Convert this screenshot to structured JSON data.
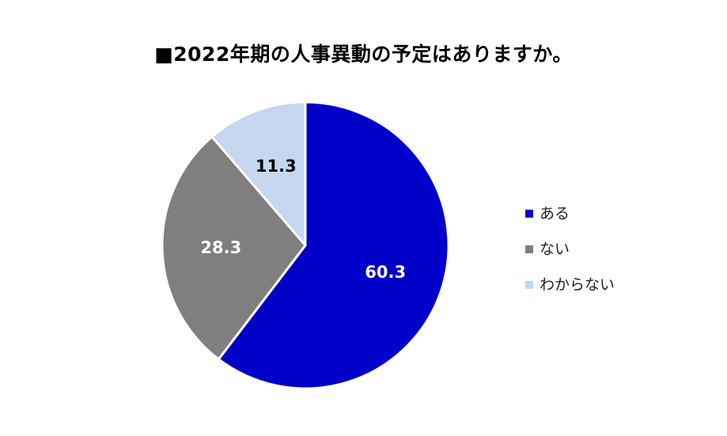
{
  "chart_data": {
    "type": "pie",
    "title": "■2022年期の人事異動の予定はありますか。",
    "categories": [
      "ある",
      "ない",
      "わからない"
    ],
    "values": [
      60.3,
      28.3,
      11.3
    ],
    "data_labels": [
      "60.3",
      "28.3",
      "11.3"
    ],
    "colors": [
      "#0000C8",
      "#7F7F7F",
      "#C6D6EE"
    ],
    "label_colors": [
      "#FFFFFF",
      "#FFFFFF",
      "#000000"
    ],
    "start_angle": "12 o'clock",
    "direction": "clockwise",
    "legend_position": "right"
  }
}
